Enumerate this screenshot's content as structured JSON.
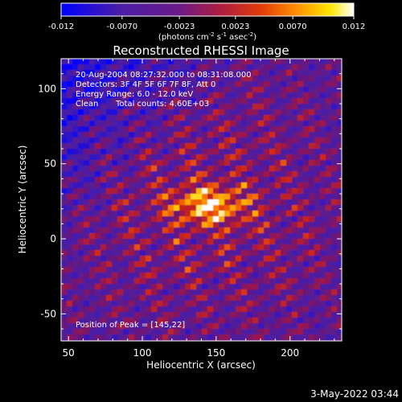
{
  "chart_data": {
    "type": "heatmap",
    "title": "Reconstructed RHESSI Image",
    "xlabel": "Heliocentric X (arcsec)",
    "ylabel": "Heliocentric Y (arcsec)",
    "xlim": [
      45,
      235
    ],
    "ylim": [
      -68,
      120
    ],
    "x_ticks": [
      50,
      100,
      150,
      200
    ],
    "y_ticks": [
      -50,
      0,
      50,
      100
    ],
    "colorbar": {
      "range": [
        -0.012,
        0.012
      ],
      "tick_labels": [
        "-0.012",
        "-0.0070",
        "-0.0023",
        "0.0023",
        "0.0070",
        "0.012"
      ],
      "tick_values": [
        -0.012,
        -0.007,
        -0.0023,
        0.0023,
        0.007,
        0.012
      ],
      "units_label": "(photons cm",
      "units_sup1": "-2",
      "units_mid": " s",
      "units_sup2": "-1",
      "units_mid2": " asec",
      "units_sup3": "-2",
      "units_end": ")"
    },
    "annotations": {
      "line1": "20-Aug-2004 08:27:32.000 to 08:31:08.000",
      "line2": "Detectors: 3F 4F 5F 6F 7F 8F, Att 0",
      "line3": "Energy Range: 6.0 - 12.0 keV",
      "line4_method": "Clean",
      "line4_counts": "Total counts: 4.60E+03",
      "peak": "Position of Peak = [145,22]"
    },
    "peak_position": [
      145,
      22
    ],
    "colors": {
      "background": "#000000",
      "colormap": [
        "#0000ff",
        "#5a1ea0",
        "#8c1a6e",
        "#c81e14",
        "#ff6a00",
        "#ffd200",
        "#ffffff"
      ]
    }
  },
  "footer": {
    "date": "3-May-2022 03:44"
  }
}
